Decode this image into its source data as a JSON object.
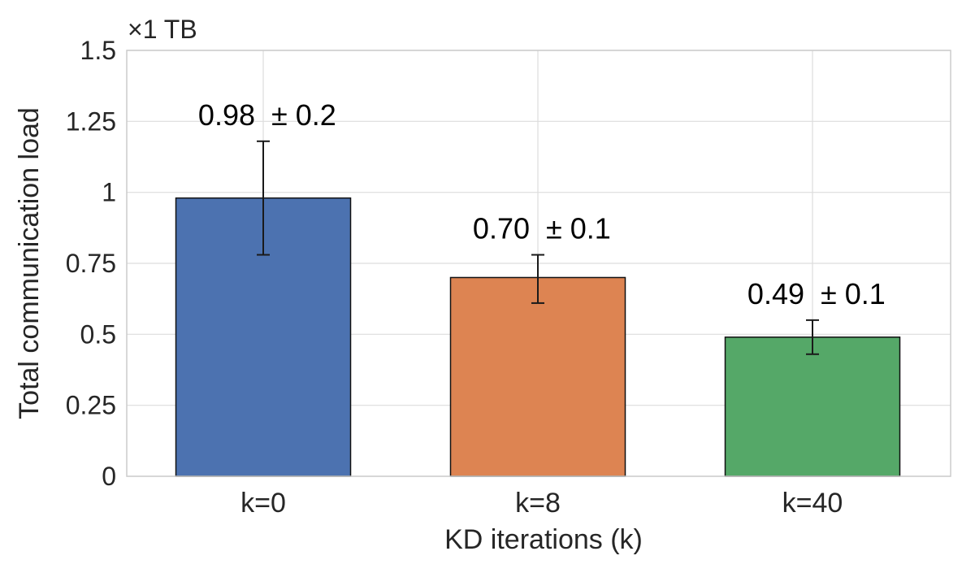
{
  "chart_data": {
    "type": "bar",
    "categories": [
      "k=0",
      "k=8",
      "k=40"
    ],
    "values": [
      0.98,
      0.7,
      0.49
    ],
    "error_bars": [
      {
        "low": 0.78,
        "high": 1.18
      },
      {
        "low": 0.61,
        "high": 0.78
      },
      {
        "low": 0.43,
        "high": 0.55
      }
    ],
    "value_labels": [
      "0.98",
      "0.70",
      "0.49"
    ],
    "error_labels": [
      "± 0.2",
      "± 0.1",
      "± 0.1"
    ],
    "colors": [
      "#4c72b0",
      "#dd8452",
      "#55a868"
    ],
    "xlabel": "KD iterations (k)",
    "ylabel": "Total communication load",
    "scale_label": "×1 TB",
    "ylim": [
      0,
      1.5
    ],
    "yticks": [
      0,
      0.25,
      0.5,
      0.75,
      1,
      1.25,
      1.5
    ],
    "ytick_labels": [
      "0",
      "0.25",
      "0.5",
      "0.75",
      "1",
      "1.25",
      "1.5"
    ],
    "grid": true,
    "legend": "none"
  }
}
